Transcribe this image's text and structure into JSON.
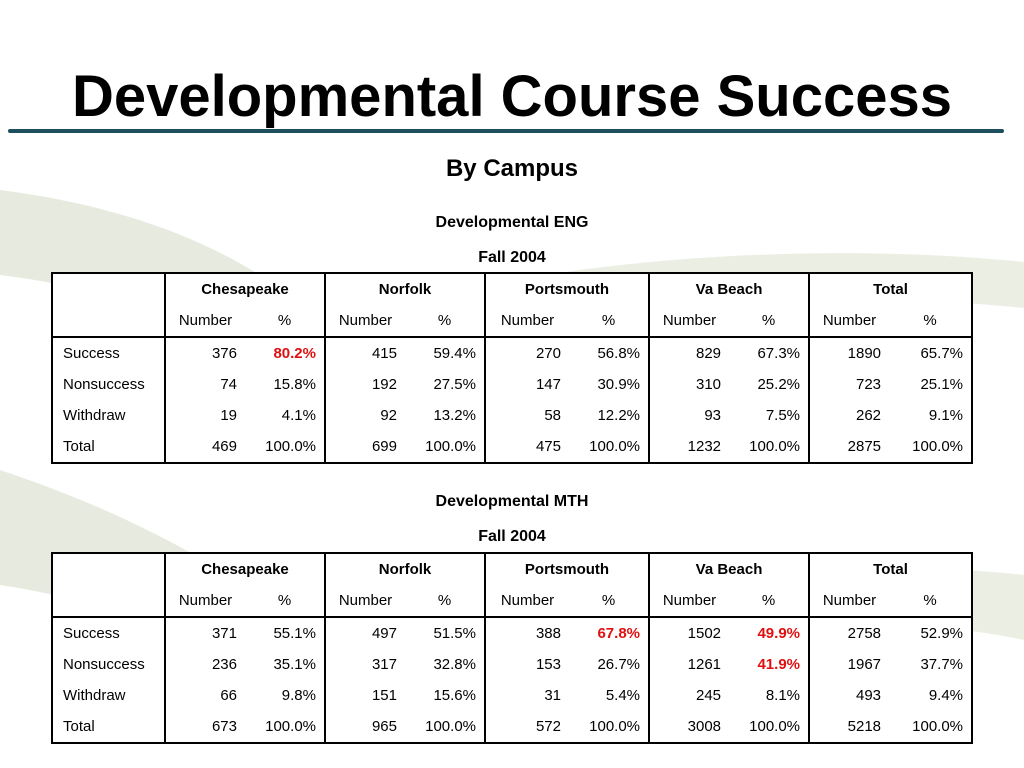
{
  "slide": {
    "title": "Developmental Course Success",
    "subtitle": "By Campus"
  },
  "colors": {
    "title_rule": "#1e4f5e",
    "background_swoosh": "#e3e8d9",
    "highlight_text": "#e01010"
  },
  "sub_headers": [
    "Number",
    "%"
  ],
  "eng": {
    "caption_line1": "Developmental ENG",
    "caption_line2": "Fall 2004",
    "campuses": [
      "Chesapeake",
      "Norfolk",
      "Portsmouth",
      "Va Beach",
      "Total"
    ],
    "rows": [
      {
        "label": "Success",
        "cells": [
          {
            "n": "376",
            "p": "80.2%",
            "highlight": true
          },
          {
            "n": "415",
            "p": "59.4%",
            "highlight": false
          },
          {
            "n": "270",
            "p": "56.8%",
            "highlight": false
          },
          {
            "n": "829",
            "p": "67.3%",
            "highlight": false
          },
          {
            "n": "1890",
            "p": "65.7%",
            "highlight": false
          }
        ]
      },
      {
        "label": "Nonsuccess",
        "cells": [
          {
            "n": "74",
            "p": "15.8%",
            "highlight": false
          },
          {
            "n": "192",
            "p": "27.5%",
            "highlight": false
          },
          {
            "n": "147",
            "p": "30.9%",
            "highlight": false
          },
          {
            "n": "310",
            "p": "25.2%",
            "highlight": false
          },
          {
            "n": "723",
            "p": "25.1%",
            "highlight": false
          }
        ]
      },
      {
        "label": "Withdraw",
        "cells": [
          {
            "n": "19",
            "p": "4.1%",
            "highlight": false
          },
          {
            "n": "92",
            "p": "13.2%",
            "highlight": false
          },
          {
            "n": "58",
            "p": "12.2%",
            "highlight": false
          },
          {
            "n": "93",
            "p": "7.5%",
            "highlight": false
          },
          {
            "n": "262",
            "p": "9.1%",
            "highlight": false
          }
        ]
      },
      {
        "label": "Total",
        "cells": [
          {
            "n": "469",
            "p": "100.0%",
            "highlight": false
          },
          {
            "n": "699",
            "p": "100.0%",
            "highlight": false
          },
          {
            "n": "475",
            "p": "100.0%",
            "highlight": false
          },
          {
            "n": "1232",
            "p": "100.0%",
            "highlight": false
          },
          {
            "n": "2875",
            "p": "100.0%",
            "highlight": false
          }
        ]
      }
    ]
  },
  "mth": {
    "caption_line1": "Developmental MTH",
    "caption_line2": "Fall 2004",
    "campuses": [
      "Chesapeake",
      "Norfolk",
      "Portsmouth",
      "Va Beach",
      "Total"
    ],
    "rows": [
      {
        "label": "Success",
        "cells": [
          {
            "n": "371",
            "p": "55.1%",
            "highlight": false
          },
          {
            "n": "497",
            "p": "51.5%",
            "highlight": false
          },
          {
            "n": "388",
            "p": "67.8%",
            "highlight": true
          },
          {
            "n": "1502",
            "p": "49.9%",
            "highlight": true
          },
          {
            "n": "2758",
            "p": "52.9%",
            "highlight": false
          }
        ]
      },
      {
        "label": "Nonsuccess",
        "cells": [
          {
            "n": "236",
            "p": "35.1%",
            "highlight": false
          },
          {
            "n": "317",
            "p": "32.8%",
            "highlight": false
          },
          {
            "n": "153",
            "p": "26.7%",
            "highlight": false
          },
          {
            "n": "1261",
            "p": "41.9%",
            "highlight": true
          },
          {
            "n": "1967",
            "p": "37.7%",
            "highlight": false
          }
        ]
      },
      {
        "label": "Withdraw",
        "cells": [
          {
            "n": "66",
            "p": "9.8%",
            "highlight": false
          },
          {
            "n": "151",
            "p": "15.6%",
            "highlight": false
          },
          {
            "n": "31",
            "p": "5.4%",
            "highlight": false
          },
          {
            "n": "245",
            "p": "8.1%",
            "highlight": false
          },
          {
            "n": "493",
            "p": "9.4%",
            "highlight": false
          }
        ]
      },
      {
        "label": "Total",
        "cells": [
          {
            "n": "673",
            "p": "100.0%",
            "highlight": false
          },
          {
            "n": "965",
            "p": "100.0%",
            "highlight": false
          },
          {
            "n": "572",
            "p": "100.0%",
            "highlight": false
          },
          {
            "n": "3008",
            "p": "100.0%",
            "highlight": false
          },
          {
            "n": "5218",
            "p": "100.0%",
            "highlight": false
          }
        ]
      }
    ]
  }
}
